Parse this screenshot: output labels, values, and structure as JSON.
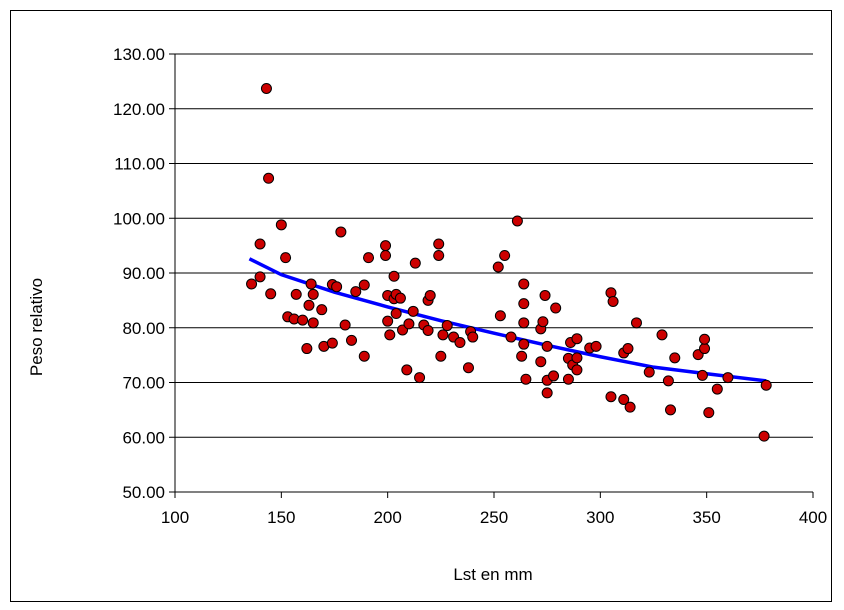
{
  "chart_data": {
    "type": "scatter",
    "title": "",
    "xlabel": "Lst en mm",
    "ylabel": "Peso relativo",
    "xlim": [
      100,
      400
    ],
    "ylim": [
      50,
      130
    ],
    "xticks": [
      "100",
      "150",
      "200",
      "250",
      "300",
      "350",
      "400"
    ],
    "yticks": [
      "50.00",
      "60.00",
      "70.00",
      "80.00",
      "90.00",
      "100.00",
      "110.00",
      "120.00",
      "130.00"
    ],
    "grid": "horizontal",
    "legend": "none",
    "marker_color": "#cc0000",
    "trend_color": "#0000ff",
    "points": [
      [
        136,
        88.0
      ],
      [
        140,
        95.3
      ],
      [
        140,
        89.3
      ],
      [
        143,
        123.7
      ],
      [
        144,
        107.3
      ],
      [
        145,
        86.2
      ],
      [
        150,
        98.8
      ],
      [
        152,
        92.8
      ],
      [
        153,
        82.0
      ],
      [
        156,
        81.6
      ],
      [
        157,
        86.1
      ],
      [
        160,
        81.4
      ],
      [
        162,
        76.2
      ],
      [
        163,
        84.1
      ],
      [
        164,
        88.0
      ],
      [
        165,
        86.1
      ],
      [
        165,
        80.9
      ],
      [
        169,
        83.3
      ],
      [
        170,
        76.6
      ],
      [
        174,
        77.2
      ],
      [
        174,
        87.9
      ],
      [
        176,
        87.5
      ],
      [
        178,
        97.5
      ],
      [
        180,
        80.5
      ],
      [
        183,
        77.7
      ],
      [
        185,
        86.6
      ],
      [
        189,
        74.8
      ],
      [
        189,
        87.8
      ],
      [
        191,
        92.8
      ],
      [
        199,
        95.0
      ],
      [
        199,
        93.2
      ],
      [
        200,
        85.9
      ],
      [
        200,
        81.2
      ],
      [
        201,
        78.7
      ],
      [
        203,
        85.3
      ],
      [
        203,
        89.4
      ],
      [
        204,
        86.1
      ],
      [
        204,
        82.6
      ],
      [
        206,
        85.4
      ],
      [
        207,
        79.6
      ],
      [
        209,
        72.3
      ],
      [
        210,
        80.7
      ],
      [
        212,
        83.0
      ],
      [
        213,
        91.8
      ],
      [
        215,
        70.9
      ],
      [
        217,
        80.5
      ],
      [
        219,
        85.0
      ],
      [
        219,
        79.5
      ],
      [
        220,
        85.9
      ],
      [
        224,
        95.3
      ],
      [
        224,
        93.2
      ],
      [
        225,
        74.8
      ],
      [
        226,
        78.7
      ],
      [
        228,
        80.4
      ],
      [
        231,
        78.3
      ],
      [
        234,
        77.3
      ],
      [
        238,
        72.7
      ],
      [
        239,
        79.3
      ],
      [
        240,
        78.3
      ],
      [
        252,
        91.1
      ],
      [
        253,
        82.2
      ],
      [
        255,
        93.2
      ],
      [
        258,
        78.3
      ],
      [
        261,
        99.5
      ],
      [
        263,
        74.8
      ],
      [
        264,
        88.0
      ],
      [
        264,
        84.4
      ],
      [
        264,
        80.9
      ],
      [
        264,
        77.0
      ],
      [
        265,
        70.6
      ],
      [
        272,
        79.8
      ],
      [
        272,
        73.8
      ],
      [
        273,
        81.1
      ],
      [
        274,
        85.9
      ],
      [
        275,
        76.6
      ],
      [
        275,
        70.4
      ],
      [
        275,
        68.1
      ],
      [
        278,
        71.2
      ],
      [
        279,
        83.6
      ],
      [
        285,
        74.4
      ],
      [
        285,
        70.6
      ],
      [
        286,
        77.3
      ],
      [
        287,
        73.2
      ],
      [
        289,
        78.0
      ],
      [
        289,
        74.5
      ],
      [
        289,
        72.3
      ],
      [
        295,
        76.3
      ],
      [
        298,
        76.6
      ],
      [
        305,
        67.4
      ],
      [
        305,
        86.4
      ],
      [
        306,
        84.8
      ],
      [
        311,
        75.4
      ],
      [
        311,
        66.9
      ],
      [
        313,
        76.2
      ],
      [
        314,
        65.5
      ],
      [
        317,
        80.9
      ],
      [
        323,
        71.9
      ],
      [
        329,
        78.7
      ],
      [
        332,
        70.3
      ],
      [
        333,
        65.0
      ],
      [
        335,
        74.5
      ],
      [
        346,
        75.1
      ],
      [
        348,
        71.3
      ],
      [
        349,
        76.2
      ],
      [
        349,
        77.9
      ],
      [
        351,
        64.5
      ],
      [
        355,
        68.8
      ],
      [
        360,
        70.9
      ],
      [
        377,
        60.2
      ],
      [
        378,
        69.5
      ]
    ],
    "trend_line": {
      "x": [
        135,
        150,
        175,
        200,
        225,
        250,
        275,
        300,
        325,
        350,
        378
      ],
      "y": [
        92.6,
        89.7,
        86.5,
        83.8,
        81.3,
        79.0,
        76.8,
        74.7,
        72.8,
        71.6,
        70.3
      ]
    }
  }
}
